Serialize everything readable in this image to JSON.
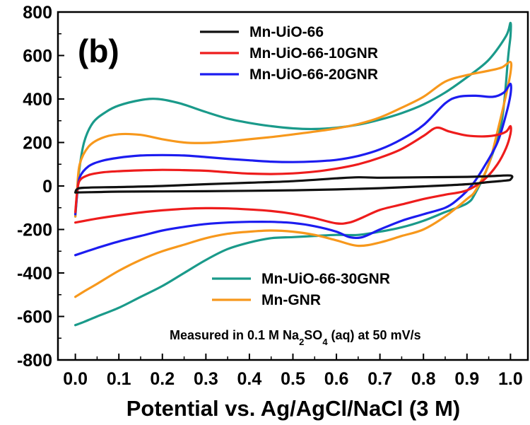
{
  "chart_data": {
    "type": "line",
    "panel_label": "(b)",
    "xlabel": "Potential vs. Ag/AgCl/NaCl (3 M)",
    "ylabel": "",
    "xlim": [
      -0.04,
      1.04
    ],
    "ylim": [
      -800,
      800
    ],
    "x_ticks": [
      "0.0",
      "0.1",
      "0.2",
      "0.3",
      "0.4",
      "0.5",
      "0.6",
      "0.7",
      "0.8",
      "0.9",
      "1.0"
    ],
    "y_ticks": [
      "-800",
      "-600",
      "-400",
      "-200",
      "0",
      "200",
      "400",
      "600",
      "800"
    ],
    "annotation": {
      "before": "Measured in 0.1 M Na",
      "sub1": "2",
      "mid": "SO",
      "sub2": "4",
      "after": " (aq) at 50 mV/s"
    },
    "legend_top": [
      "Mn-UiO-66",
      "Mn-UiO-66-10GNR",
      "Mn-UiO-66-20GNR"
    ],
    "legend_bottom": [
      "Mn-UiO-66-30GNR",
      "Mn-GNR"
    ],
    "series": [
      {
        "name": "Mn-UiO-66-30GNR",
        "color": "#1a9a8a",
        "points": [
          [
            0,
            -140
          ],
          [
            0.003,
            -60
          ],
          [
            0.008,
            60
          ],
          [
            0.02,
            200
          ],
          [
            0.04,
            290
          ],
          [
            0.07,
            340
          ],
          [
            0.1,
            370
          ],
          [
            0.15,
            395
          ],
          [
            0.19,
            400
          ],
          [
            0.24,
            380
          ],
          [
            0.3,
            340
          ],
          [
            0.35,
            310
          ],
          [
            0.4,
            290
          ],
          [
            0.45,
            275
          ],
          [
            0.5,
            265
          ],
          [
            0.55,
            262
          ],
          [
            0.6,
            268
          ],
          [
            0.65,
            282
          ],
          [
            0.7,
            305
          ],
          [
            0.75,
            335
          ],
          [
            0.8,
            375
          ],
          [
            0.85,
            430
          ],
          [
            0.9,
            500
          ],
          [
            0.95,
            580
          ],
          [
            0.99,
            690
          ],
          [
            1.0,
            750
          ],
          [
            1.0,
            690
          ],
          [
            0.995,
            600
          ],
          [
            0.98,
            300
          ],
          [
            0.95,
            100
          ],
          [
            0.92,
            -30
          ],
          [
            0.9,
            -80
          ],
          [
            0.85,
            -120
          ],
          [
            0.8,
            -160
          ],
          [
            0.75,
            -190
          ],
          [
            0.7,
            -210
          ],
          [
            0.65,
            -225
          ],
          [
            0.6,
            -225
          ],
          [
            0.55,
            -230
          ],
          [
            0.5,
            -235
          ],
          [
            0.45,
            -240
          ],
          [
            0.4,
            -260
          ],
          [
            0.35,
            -290
          ],
          [
            0.3,
            -340
          ],
          [
            0.25,
            -400
          ],
          [
            0.2,
            -460
          ],
          [
            0.15,
            -510
          ],
          [
            0.1,
            -560
          ],
          [
            0.05,
            -600
          ],
          [
            0.02,
            -625
          ],
          [
            0.0,
            -640
          ]
        ]
      },
      {
        "name": "Mn-GNR",
        "color": "#f7981c",
        "points": [
          [
            0,
            -140
          ],
          [
            0.004,
            -20
          ],
          [
            0.01,
            100
          ],
          [
            0.03,
            180
          ],
          [
            0.06,
            220
          ],
          [
            0.1,
            238
          ],
          [
            0.15,
            235
          ],
          [
            0.2,
            215
          ],
          [
            0.25,
            200
          ],
          [
            0.3,
            198
          ],
          [
            0.35,
            205
          ],
          [
            0.4,
            215
          ],
          [
            0.45,
            225
          ],
          [
            0.5,
            237
          ],
          [
            0.55,
            250
          ],
          [
            0.6,
            265
          ],
          [
            0.65,
            285
          ],
          [
            0.7,
            315
          ],
          [
            0.75,
            360
          ],
          [
            0.8,
            410
          ],
          [
            0.85,
            480
          ],
          [
            0.9,
            510
          ],
          [
            0.95,
            530
          ],
          [
            0.98,
            545
          ],
          [
            1.0,
            570
          ],
          [
            1.0,
            520
          ],
          [
            0.99,
            420
          ],
          [
            0.97,
            250
          ],
          [
            0.95,
            100
          ],
          [
            0.92,
            -20
          ],
          [
            0.9,
            -60
          ],
          [
            0.85,
            -140
          ],
          [
            0.8,
            -200
          ],
          [
            0.75,
            -230
          ],
          [
            0.7,
            -260
          ],
          [
            0.65,
            -275
          ],
          [
            0.6,
            -250
          ],
          [
            0.55,
            -225
          ],
          [
            0.5,
            -210
          ],
          [
            0.45,
            -205
          ],
          [
            0.4,
            -210
          ],
          [
            0.35,
            -220
          ],
          [
            0.3,
            -240
          ],
          [
            0.25,
            -270
          ],
          [
            0.2,
            -300
          ],
          [
            0.15,
            -340
          ],
          [
            0.1,
            -390
          ],
          [
            0.05,
            -450
          ],
          [
            0.02,
            -485
          ],
          [
            0.0,
            -510
          ]
        ]
      },
      {
        "name": "Mn-UiO-66-20GNR",
        "color": "#1c1cf0",
        "points": [
          [
            0,
            -130
          ],
          [
            0.004,
            -40
          ],
          [
            0.01,
            40
          ],
          [
            0.03,
            90
          ],
          [
            0.06,
            115
          ],
          [
            0.1,
            130
          ],
          [
            0.15,
            140
          ],
          [
            0.2,
            142
          ],
          [
            0.25,
            140
          ],
          [
            0.3,
            133
          ],
          [
            0.35,
            125
          ],
          [
            0.4,
            118
          ],
          [
            0.45,
            112
          ],
          [
            0.5,
            110
          ],
          [
            0.55,
            113
          ],
          [
            0.6,
            120
          ],
          [
            0.65,
            138
          ],
          [
            0.7,
            168
          ],
          [
            0.75,
            215
          ],
          [
            0.8,
            280
          ],
          [
            0.85,
            380
          ],
          [
            0.88,
            410
          ],
          [
            0.92,
            415
          ],
          [
            0.96,
            410
          ],
          [
            0.985,
            430
          ],
          [
            1.0,
            470
          ],
          [
            1.0,
            420
          ],
          [
            0.99,
            330
          ],
          [
            0.97,
            200
          ],
          [
            0.94,
            90
          ],
          [
            0.91,
            0
          ],
          [
            0.88,
            -60
          ],
          [
            0.85,
            -100
          ],
          [
            0.8,
            -130
          ],
          [
            0.75,
            -160
          ],
          [
            0.7,
            -200
          ],
          [
            0.66,
            -235
          ],
          [
            0.63,
            -235
          ],
          [
            0.6,
            -210
          ],
          [
            0.55,
            -185
          ],
          [
            0.5,
            -170
          ],
          [
            0.45,
            -165
          ],
          [
            0.4,
            -165
          ],
          [
            0.35,
            -168
          ],
          [
            0.3,
            -175
          ],
          [
            0.25,
            -188
          ],
          [
            0.2,
            -205
          ],
          [
            0.15,
            -230
          ],
          [
            0.1,
            -255
          ],
          [
            0.05,
            -285
          ],
          [
            0.0,
            -318
          ]
        ]
      },
      {
        "name": "Mn-UiO-66-10GNR",
        "color": "#ee1c1c",
        "points": [
          [
            0,
            -120
          ],
          [
            0.004,
            -30
          ],
          [
            0.01,
            25
          ],
          [
            0.03,
            50
          ],
          [
            0.06,
            62
          ],
          [
            0.1,
            68
          ],
          [
            0.15,
            72
          ],
          [
            0.2,
            74
          ],
          [
            0.25,
            73
          ],
          [
            0.3,
            70
          ],
          [
            0.35,
            63
          ],
          [
            0.4,
            57
          ],
          [
            0.45,
            55
          ],
          [
            0.5,
            58
          ],
          [
            0.55,
            66
          ],
          [
            0.6,
            80
          ],
          [
            0.65,
            100
          ],
          [
            0.7,
            130
          ],
          [
            0.75,
            170
          ],
          [
            0.8,
            230
          ],
          [
            0.83,
            268
          ],
          [
            0.86,
            250
          ],
          [
            0.9,
            232
          ],
          [
            0.94,
            228
          ],
          [
            0.97,
            235
          ],
          [
            0.99,
            250
          ],
          [
            1.0,
            275
          ],
          [
            1.0,
            240
          ],
          [
            0.99,
            175
          ],
          [
            0.97,
            100
          ],
          [
            0.94,
            30
          ],
          [
            0.9,
            -20
          ],
          [
            0.85,
            -40
          ],
          [
            0.8,
            -60
          ],
          [
            0.75,
            -85
          ],
          [
            0.7,
            -110
          ],
          [
            0.66,
            -145
          ],
          [
            0.63,
            -168
          ],
          [
            0.6,
            -172
          ],
          [
            0.55,
            -148
          ],
          [
            0.5,
            -128
          ],
          [
            0.45,
            -115
          ],
          [
            0.4,
            -108
          ],
          [
            0.35,
            -103
          ],
          [
            0.3,
            -102
          ],
          [
            0.25,
            -105
          ],
          [
            0.2,
            -112
          ],
          [
            0.15,
            -122
          ],
          [
            0.1,
            -135
          ],
          [
            0.05,
            -150
          ],
          [
            0.0,
            -168
          ]
        ]
      },
      {
        "name": "Mn-UiO-66",
        "color": "#111111",
        "points": [
          [
            0,
            -30
          ],
          [
            0.004,
            -15
          ],
          [
            0.02,
            -8
          ],
          [
            0.1,
            -5
          ],
          [
            0.2,
            0
          ],
          [
            0.3,
            8
          ],
          [
            0.4,
            15
          ],
          [
            0.5,
            22
          ],
          [
            0.6,
            35
          ],
          [
            0.65,
            40
          ],
          [
            0.7,
            38
          ],
          [
            0.8,
            40
          ],
          [
            0.9,
            42
          ],
          [
            0.95,
            45
          ],
          [
            1.0,
            48
          ],
          [
            1.0,
            30
          ],
          [
            0.99,
            25
          ],
          [
            0.95,
            18
          ],
          [
            0.9,
            8
          ],
          [
            0.8,
            -2
          ],
          [
            0.7,
            -10
          ],
          [
            0.6,
            -16
          ],
          [
            0.5,
            -20
          ],
          [
            0.4,
            -22
          ],
          [
            0.3,
            -24
          ],
          [
            0.2,
            -25
          ],
          [
            0.1,
            -26
          ],
          [
            0.05,
            -28
          ],
          [
            0.0,
            -30
          ]
        ]
      }
    ]
  }
}
